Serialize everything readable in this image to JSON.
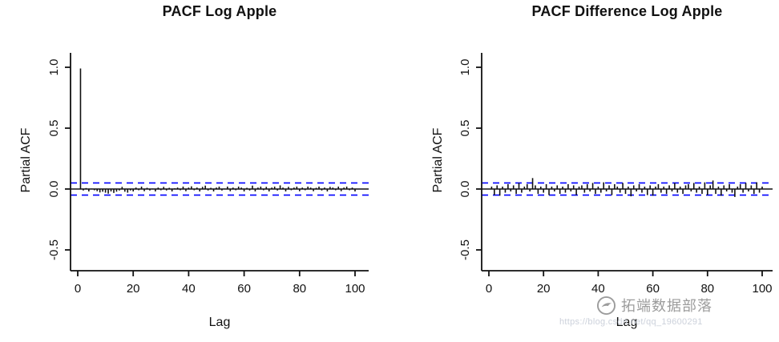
{
  "figure": {
    "watermark": {
      "brand": "拓端数据部落",
      "url": "https://blog.csdn.net/qq_19600291"
    }
  },
  "chart_data": [
    {
      "type": "bar",
      "title": "PACF Log Apple",
      "xlabel": "Lag",
      "ylabel": "Partial ACF",
      "xticks": [
        0,
        20,
        40,
        60,
        80,
        100
      ],
      "yticks": [
        -0.5,
        0.0,
        0.5,
        1.0
      ],
      "xlim": [
        -2,
        105
      ],
      "ylim": [
        -0.65,
        1.1
      ],
      "lag_start": 1,
      "conf_level": 0.05,
      "conf_style": "dashed",
      "conf_color": "#0000ff",
      "bar_color": "#111111",
      "zero_line": true,
      "values": [
        0.99,
        -0.012,
        0.008,
        -0.02,
        0.004,
        -0.01,
        -0.018,
        -0.028,
        -0.022,
        -0.03,
        -0.038,
        -0.02,
        -0.032,
        -0.022,
        -0.012,
        0.018,
        -0.022,
        -0.03,
        -0.012,
        -0.02,
        0.012,
        -0.01,
        0.02,
        -0.018,
        0.01,
        -0.012,
        0.004,
        -0.02,
        0.012,
        -0.01,
        0.018,
        -0.012,
        0.01,
        -0.02,
        0.006,
        0.012,
        -0.01,
        0.02,
        -0.018,
        0.012,
        0.022,
        -0.01,
        0.012,
        -0.02,
        0.018,
        0.028,
        -0.012,
        0.01,
        -0.02,
        0.012,
        0.02,
        -0.012,
        0.004,
        0.02,
        -0.018,
        0.012,
        -0.01,
        0.02,
        0.012,
        -0.02,
        0.01,
        -0.012,
        0.028,
        -0.02,
        0.012,
        0.02,
        -0.01,
        0.018,
        -0.02,
        0.012,
        0.02,
        -0.012,
        0.03,
        0.012,
        -0.02,
        0.018,
        -0.01,
        0.012,
        0.02,
        -0.018,
        0.012,
        -0.01,
        0.02,
        0.012,
        -0.018,
        0.01,
        0.02,
        -0.012,
        0.012,
        -0.02,
        0.018,
        0.012,
        -0.01,
        0.02,
        -0.018,
        0.012,
        0.02,
        -0.01,
        0.012,
        -0.02
      ]
    },
    {
      "type": "bar",
      "title": "PACF Difference Log Apple",
      "xlabel": "Lag",
      "ylabel": "Partial ACF",
      "xticks": [
        0,
        20,
        40,
        60,
        80,
        100
      ],
      "yticks": [
        -0.5,
        0.0,
        0.5,
        1.0
      ],
      "xlim": [
        -2,
        105
      ],
      "ylim": [
        -0.65,
        1.1
      ],
      "lag_start": 1,
      "conf_level": 0.05,
      "conf_style": "dashed",
      "conf_color": "#0000ff",
      "bar_color": "#111111",
      "zero_line": true,
      "values": [
        0.02,
        -0.05,
        0.03,
        -0.055,
        0.02,
        -0.03,
        0.04,
        -0.02,
        0.03,
        -0.04,
        0.05,
        -0.03,
        0.02,
        0.04,
        -0.02,
        0.09,
        0.03,
        -0.04,
        0.02,
        -0.03,
        0.04,
        -0.05,
        0.02,
        -0.02,
        0.03,
        -0.04,
        0.02,
        -0.03,
        0.04,
        -0.02,
        0.03,
        -0.05,
        0.02,
        0.03,
        -0.03,
        0.04,
        -0.02,
        0.05,
        -0.04,
        0.02,
        -0.03,
        0.055,
        -0.02,
        0.03,
        -0.05,
        0.04,
        0.02,
        -0.03,
        0.05,
        -0.04,
        0.02,
        -0.06,
        0.03,
        -0.02,
        0.04,
        -0.03,
        0.02,
        -0.05,
        0.03,
        -0.055,
        0.02,
        0.04,
        -0.03,
        0.02,
        -0.04,
        0.03,
        -0.02,
        0.05,
        -0.03,
        0.02,
        -0.04,
        0.03,
        0.04,
        -0.02,
        0.05,
        -0.03,
        0.02,
        -0.04,
        0.055,
        -0.05,
        0.03,
        0.07,
        -0.04,
        0.02,
        -0.055,
        0.03,
        -0.02,
        0.04,
        -0.03,
        -0.065,
        0.02,
        0.04,
        -0.03,
        0.05,
        -0.02,
        0.03,
        -0.04,
        0.055,
        -0.03,
        0.02
      ]
    }
  ]
}
